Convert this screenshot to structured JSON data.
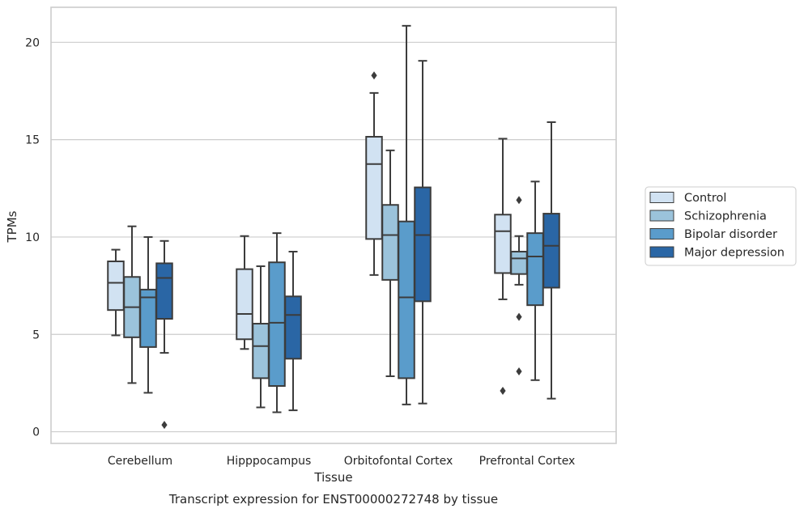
{
  "chart_data": {
    "type": "box",
    "caption": "Transcript expression for ENST00000272748 by tissue",
    "xlabel": "Tissue",
    "ylabel": "TPMs",
    "ylim": [
      -0.6,
      21.8
    ],
    "yticks": [
      0,
      5,
      10,
      15,
      20
    ],
    "grid": true,
    "legend_position": "right",
    "categories": [
      "Cerebellum",
      "Hipppocampus",
      "Orbitofontal Cortex",
      "Prefrontal Cortex"
    ],
    "series": [
      {
        "name": "Control",
        "color": "#d1e2f2",
        "boxes": [
          {
            "whislo": 4.95,
            "q1": 6.25,
            "med": 7.65,
            "q3": 8.75,
            "whishi": 9.35,
            "fliers": []
          },
          {
            "whislo": 4.25,
            "q1": 4.75,
            "med": 6.05,
            "q3": 8.35,
            "whishi": 10.05,
            "fliers": []
          },
          {
            "whislo": 8.05,
            "q1": 9.9,
            "med": 13.75,
            "q3": 15.15,
            "whishi": 17.4,
            "fliers": [
              18.3
            ]
          },
          {
            "whislo": 6.8,
            "q1": 8.15,
            "med": 10.3,
            "q3": 11.15,
            "whishi": 15.05,
            "fliers": [
              2.1
            ]
          }
        ]
      },
      {
        "name": "Schizophrenia",
        "color": "#9bc3db",
        "boxes": [
          {
            "whislo": 2.5,
            "q1": 4.85,
            "med": 6.4,
            "q3": 7.95,
            "whishi": 10.55,
            "fliers": []
          },
          {
            "whislo": 1.25,
            "q1": 2.75,
            "med": 4.4,
            "q3": 5.55,
            "whishi": 8.5,
            "fliers": []
          },
          {
            "whislo": 2.85,
            "q1": 7.8,
            "med": 10.1,
            "q3": 11.65,
            "whishi": 14.45,
            "fliers": []
          },
          {
            "whislo": 7.55,
            "q1": 8.1,
            "med": 8.9,
            "q3": 9.25,
            "whishi": 10.05,
            "fliers": [
              11.9,
              5.9,
              3.1
            ]
          }
        ]
      },
      {
        "name": "Bipolar disorder",
        "color": "#5a9ccb",
        "boxes": [
          {
            "whislo": 2.0,
            "q1": 4.35,
            "med": 6.9,
            "q3": 7.3,
            "whishi": 10.0,
            "fliers": []
          },
          {
            "whislo": 1.0,
            "q1": 2.35,
            "med": 5.6,
            "q3": 8.7,
            "whishi": 10.2,
            "fliers": []
          },
          {
            "whislo": 1.4,
            "q1": 2.75,
            "med": 6.9,
            "q3": 10.8,
            "whishi": 20.85,
            "fliers": []
          },
          {
            "whislo": 2.65,
            "q1": 6.5,
            "med": 9.0,
            "q3": 10.2,
            "whishi": 12.85,
            "fliers": []
          }
        ]
      },
      {
        "name": "Major depression",
        "color": "#2a66a5",
        "boxes": [
          {
            "whislo": 4.05,
            "q1": 5.8,
            "med": 7.9,
            "q3": 8.65,
            "whishi": 9.8,
            "fliers": [
              0.35
            ]
          },
          {
            "whislo": 1.1,
            "q1": 3.75,
            "med": 6.0,
            "q3": 6.95,
            "whishi": 9.25,
            "fliers": []
          },
          {
            "whislo": 1.45,
            "q1": 6.7,
            "med": 10.1,
            "q3": 12.55,
            "whishi": 19.05,
            "fliers": []
          },
          {
            "whislo": 1.7,
            "q1": 7.4,
            "med": 9.55,
            "q3": 11.2,
            "whishi": 15.9,
            "fliers": []
          }
        ]
      }
    ]
  }
}
